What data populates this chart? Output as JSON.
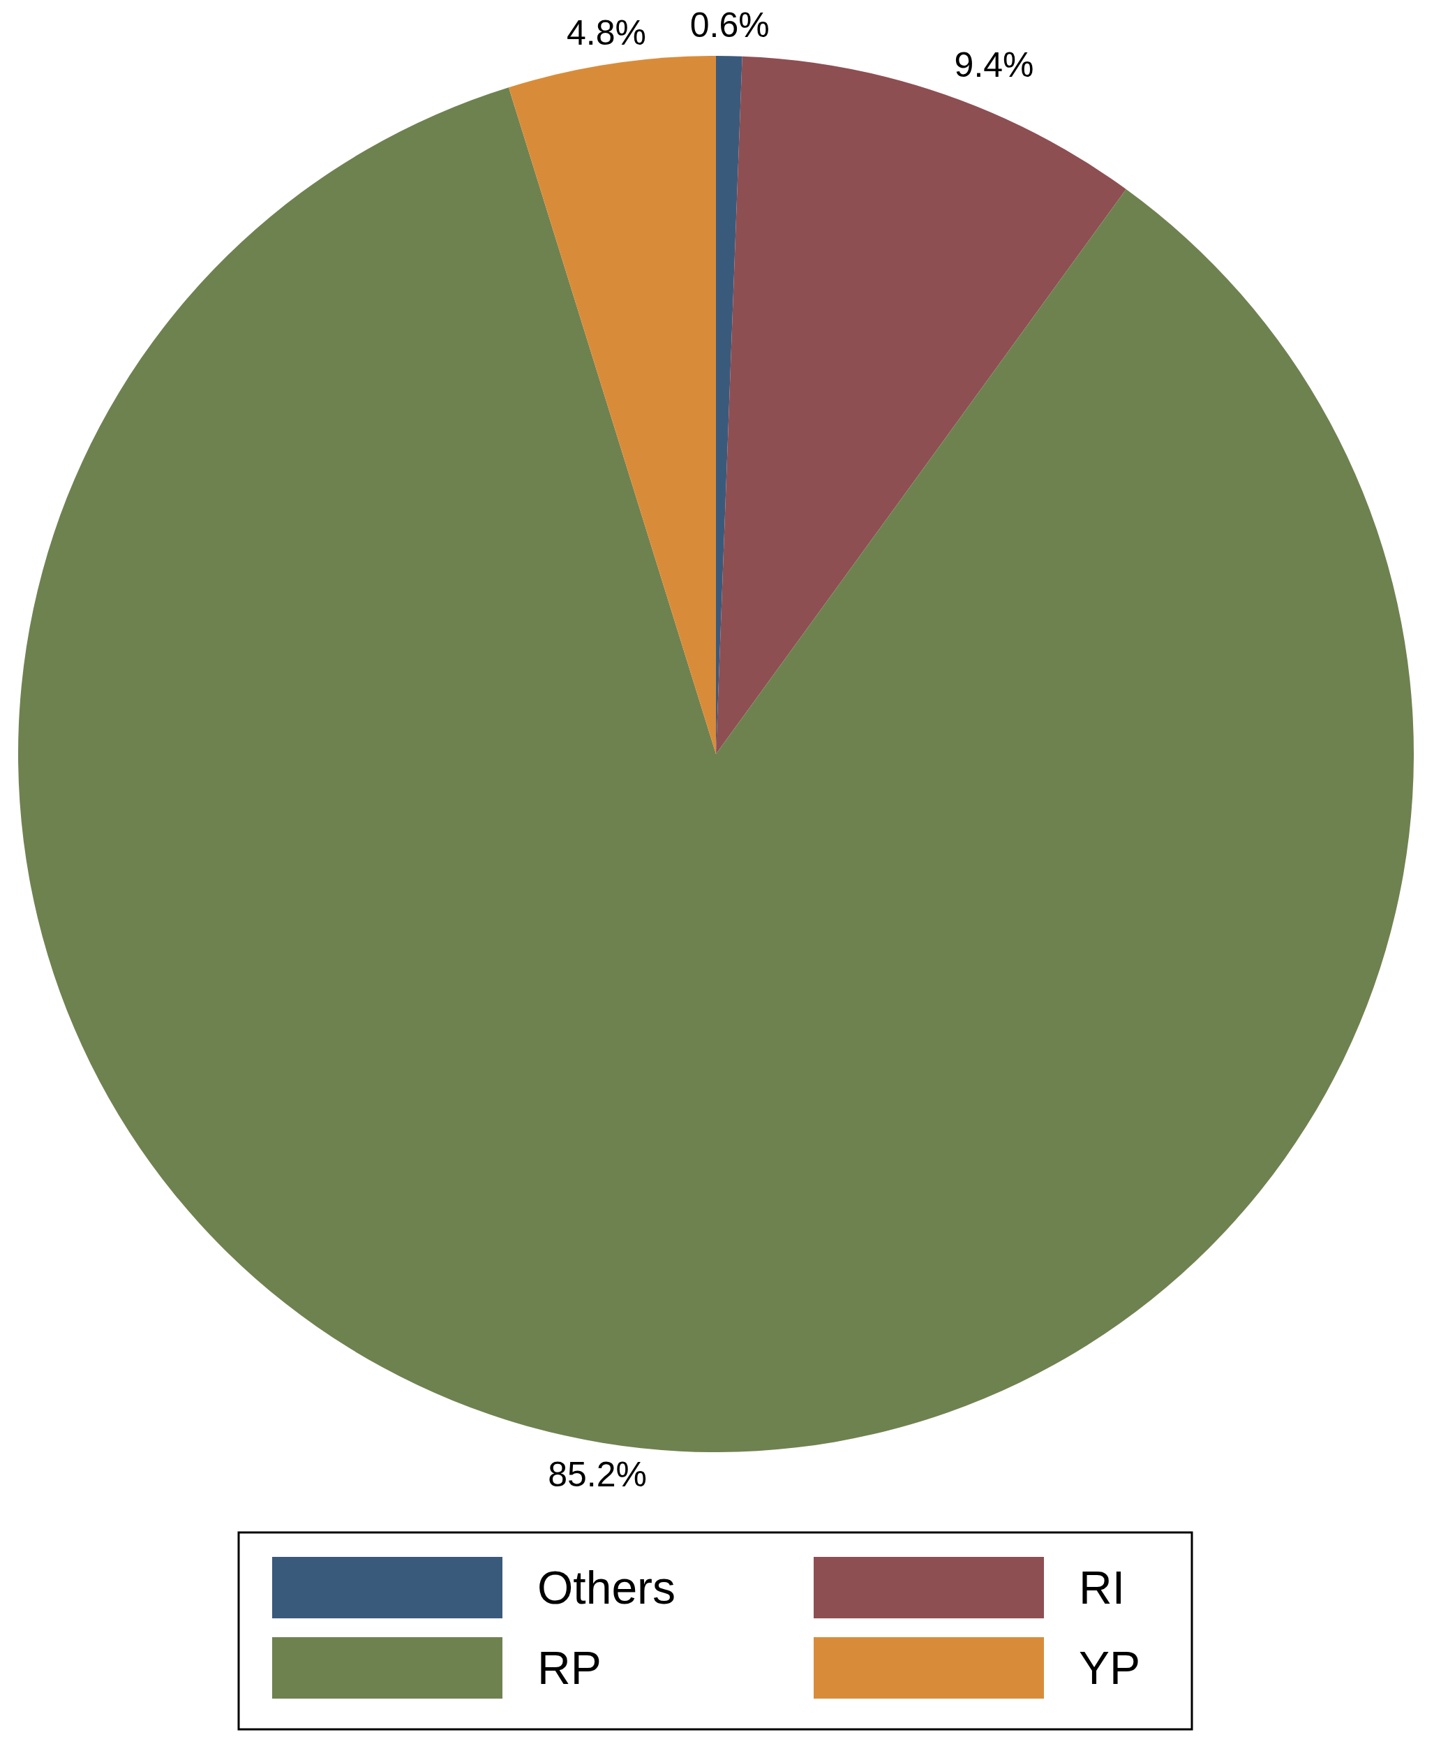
{
  "chart_data": {
    "type": "pie",
    "categories": [
      "Others",
      "RI",
      "RP",
      "YP"
    ],
    "values": [
      0.6,
      9.4,
      85.2,
      4.8
    ],
    "colors": [
      "#3a5a7c",
      "#8e4f52",
      "#6e8250",
      "#d88c3a"
    ],
    "value_labels": [
      "0.6%",
      "9.4%",
      "85.2%",
      "4.8%"
    ],
    "legend": "bottom"
  }
}
